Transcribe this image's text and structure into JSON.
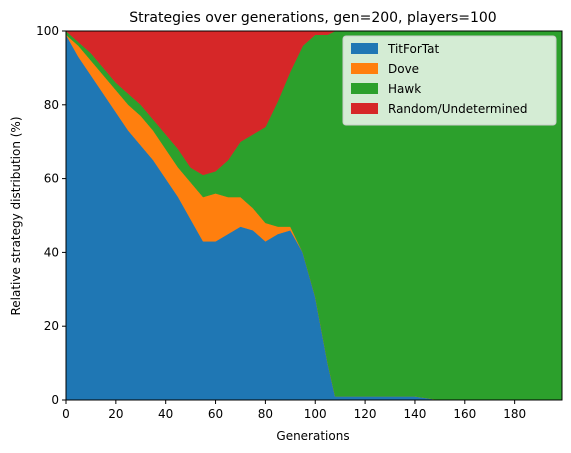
{
  "chart_data": {
    "type": "area",
    "stacked": true,
    "normalized": true,
    "title": "Strategies over generations, gen=200, players=100",
    "xlabel": "Generations",
    "ylabel": "Relative strategy distribution (%)",
    "xlim": [
      0,
      199
    ],
    "ylim": [
      0,
      100
    ],
    "x_ticks": [
      0,
      20,
      40,
      60,
      80,
      100,
      120,
      140,
      160,
      180
    ],
    "y_ticks": [
      0,
      20,
      40,
      60,
      80,
      100
    ],
    "grid": false,
    "legend_position": "top-right",
    "x": [
      0,
      5,
      10,
      15,
      20,
      25,
      30,
      35,
      40,
      45,
      50,
      55,
      60,
      65,
      70,
      75,
      80,
      85,
      90,
      95,
      100,
      105,
      108,
      110,
      120,
      130,
      140,
      150,
      160,
      170,
      180,
      190,
      199
    ],
    "series": [
      {
        "name": "TitForTat",
        "color": "#1f77b4",
        "values": [
          99,
          93,
          88,
          83,
          78,
          73,
          69,
          65,
          60,
          55,
          49,
          43,
          43,
          45,
          47,
          46,
          43,
          45,
          46,
          40,
          28,
          10,
          1,
          1,
          1,
          1,
          1,
          0,
          0,
          0,
          0,
          0,
          0
        ]
      },
      {
        "name": "Dove",
        "color": "#ff7f0e",
        "values": [
          0,
          3,
          4,
          5,
          6,
          7,
          8,
          8,
          8,
          8,
          10,
          12,
          13,
          10,
          8,
          6,
          5,
          2,
          1,
          0,
          0,
          0,
          0,
          0,
          0,
          0,
          0,
          0,
          0,
          0,
          0,
          0,
          0
        ]
      },
      {
        "name": "Hawk",
        "color": "#2ca02c",
        "values": [
          1,
          1,
          2,
          2,
          2,
          3,
          3,
          3,
          4,
          5,
          4,
          6,
          6,
          10,
          15,
          20,
          26,
          34,
          42,
          56,
          71,
          89,
          99,
          99,
          99,
          99,
          99,
          100,
          100,
          100,
          100,
          100,
          100
        ]
      },
      {
        "name": "Random/Undetermined",
        "color": "#d62728",
        "values": [
          0,
          3,
          6,
          10,
          14,
          17,
          20,
          24,
          28,
          32,
          37,
          39,
          38,
          35,
          30,
          28,
          26,
          19,
          11,
          4,
          1,
          1,
          0,
          0,
          0,
          0,
          0,
          0,
          0,
          0,
          0,
          0,
          0
        ]
      }
    ]
  }
}
